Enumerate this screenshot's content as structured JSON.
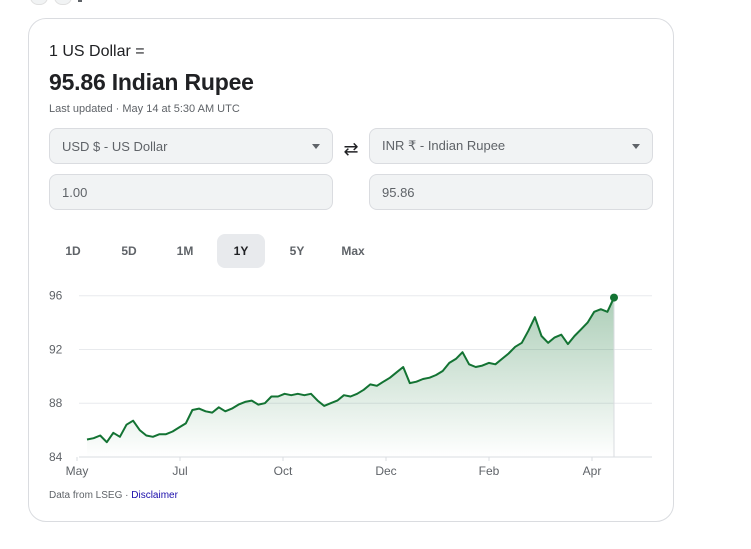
{
  "converter": {
    "from_line": "1 US Dollar =",
    "to_line": "95.86 Indian Rupee",
    "updated": "Last updated · May 14 at 5:30 AM UTC",
    "from_currency": "USD $ - US Dollar",
    "to_currency": "INR ₹ - Indian Rupee",
    "from_amount": "1.00",
    "to_amount": "95.86",
    "swap_icon": "⇄"
  },
  "tabs": [
    {
      "label": "1D",
      "active": false
    },
    {
      "label": "5D",
      "active": false
    },
    {
      "label": "1M",
      "active": false
    },
    {
      "label": "1Y",
      "active": true
    },
    {
      "label": "5Y",
      "active": false
    },
    {
      "label": "Max",
      "active": false
    }
  ],
  "footer": {
    "source": "Data from LSEG · ",
    "disclaimer": "Disclaimer"
  },
  "colors": {
    "line": "#137333",
    "fill_top": "#137333",
    "grid": "#e8eaed"
  },
  "chart_data": {
    "type": "area",
    "y_ticks": [
      84,
      88,
      92,
      96
    ],
    "x_ticks": [
      "May",
      "Jul",
      "Oct",
      "Dec",
      "Feb",
      "Apr"
    ],
    "ylim": [
      84,
      96.5
    ],
    "title": "",
    "xlabel": "",
    "ylabel": "",
    "grid": true,
    "series": [
      {
        "values": [
          85.3,
          85.4,
          85.6,
          85.1,
          85.8,
          85.5,
          86.4,
          86.7,
          86.0,
          85.6,
          85.5,
          85.7,
          85.7,
          85.9,
          86.2,
          86.5,
          87.5,
          87.6,
          87.4,
          87.3,
          87.7,
          87.4,
          87.6,
          87.9,
          88.1,
          88.2,
          87.9,
          88.0,
          88.5,
          88.5,
          88.7,
          88.6,
          88.7,
          88.6,
          88.7,
          88.2,
          87.8,
          88.0,
          88.2,
          88.6,
          88.5,
          88.7,
          89.0,
          89.4,
          89.3,
          89.6,
          89.9,
          90.3,
          90.7,
          89.5,
          89.6,
          89.8,
          89.9,
          90.1,
          90.4,
          91.0,
          91.3,
          91.8,
          90.9,
          90.7,
          90.8,
          91.0,
          90.9,
          91.3,
          91.7,
          92.2,
          92.5,
          93.4,
          94.4,
          93.0,
          92.5,
          92.9,
          93.1,
          92.4,
          93.0,
          93.5,
          94.0,
          94.8,
          95.0,
          94.8,
          95.86
        ]
      }
    ]
  }
}
